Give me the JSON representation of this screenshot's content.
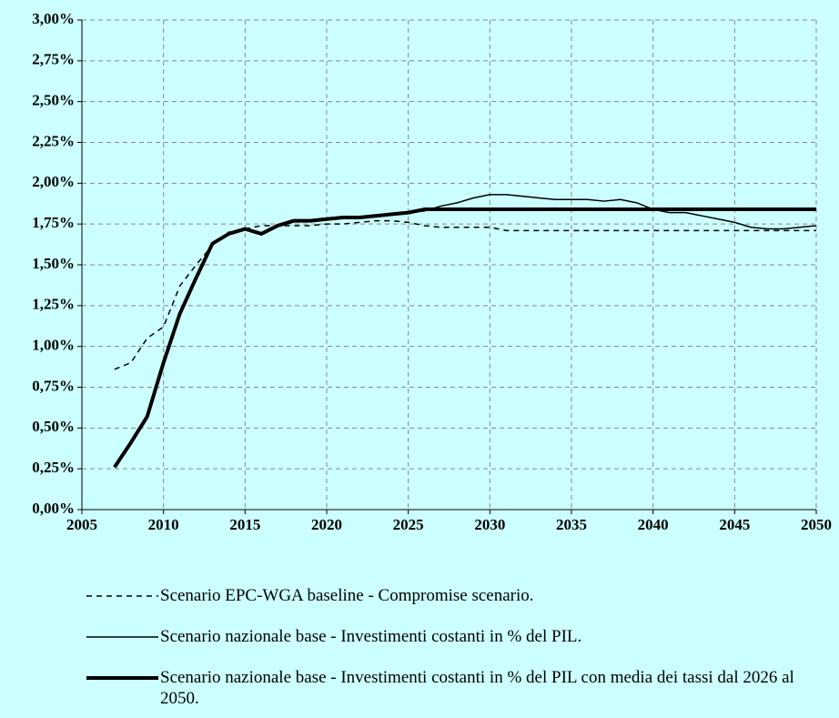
{
  "chart_data": {
    "type": "line",
    "x": [
      2007,
      2008,
      2009,
      2010,
      2011,
      2012,
      2013,
      2014,
      2015,
      2016,
      2017,
      2018,
      2019,
      2020,
      2021,
      2022,
      2023,
      2024,
      2025,
      2026,
      2027,
      2028,
      2029,
      2030,
      2031,
      2032,
      2033,
      2034,
      2035,
      2036,
      2037,
      2038,
      2039,
      2040,
      2041,
      2042,
      2043,
      2044,
      2045,
      2046,
      2047,
      2048,
      2049,
      2050
    ],
    "series": [
      {
        "name": "Scenario EPC-WGA baseline - Compromise scenario.",
        "color": "#000000",
        "line_style": "dashed",
        "line_width": 1.5,
        "values": [
          0.86,
          0.9,
          1.05,
          1.12,
          1.37,
          1.5,
          1.62,
          1.7,
          1.72,
          1.74,
          1.74,
          1.74,
          1.74,
          1.75,
          1.75,
          1.76,
          1.77,
          1.77,
          1.76,
          1.74,
          1.73,
          1.73,
          1.73,
          1.73,
          1.71,
          1.71,
          1.71,
          1.71,
          1.71,
          1.71,
          1.71,
          1.71,
          1.71,
          1.71,
          1.71,
          1.71,
          1.71,
          1.71,
          1.71,
          1.71,
          1.71,
          1.71,
          1.71,
          1.71
        ]
      },
      {
        "name": "Scenario nazionale base - Investimenti costanti in % del PIL.",
        "color": "#000000",
        "line_style": "solid",
        "line_width": 1.5,
        "values": [
          0.26,
          0.41,
          0.57,
          0.9,
          1.2,
          1.42,
          1.63,
          1.69,
          1.72,
          1.69,
          1.74,
          1.77,
          1.77,
          1.78,
          1.79,
          1.79,
          1.8,
          1.81,
          1.82,
          1.83,
          1.86,
          1.88,
          1.91,
          1.93,
          1.93,
          1.92,
          1.91,
          1.9,
          1.9,
          1.9,
          1.89,
          1.9,
          1.88,
          1.84,
          1.82,
          1.82,
          1.8,
          1.78,
          1.76,
          1.73,
          1.72,
          1.72,
          1.73,
          1.74
        ]
      },
      {
        "name": "Scenario nazionale base -  Investimenti costanti in % del PIL con media dei tassi dal 2026 al 2050.",
        "color": "#000000",
        "line_style": "solid",
        "line_width": 4,
        "values": [
          0.26,
          0.41,
          0.57,
          0.9,
          1.2,
          1.42,
          1.63,
          1.69,
          1.72,
          1.69,
          1.74,
          1.77,
          1.77,
          1.78,
          1.79,
          1.79,
          1.8,
          1.81,
          1.82,
          1.84,
          1.84,
          1.84,
          1.84,
          1.84,
          1.84,
          1.84,
          1.84,
          1.84,
          1.84,
          1.84,
          1.84,
          1.84,
          1.84,
          1.84,
          1.84,
          1.84,
          1.84,
          1.84,
          1.84,
          1.84,
          1.84,
          1.84,
          1.84,
          1.84
        ]
      }
    ],
    "xlim": [
      2005,
      2050
    ],
    "xticks": [
      2005,
      2010,
      2015,
      2020,
      2025,
      2030,
      2035,
      2040,
      2045,
      2050
    ],
    "ylim": [
      0,
      3
    ],
    "yticks": [
      {
        "value": 0,
        "label": "0,00%"
      },
      {
        "value": 0.25,
        "label": "0,25%"
      },
      {
        "value": 0.5,
        "label": "0,50%"
      },
      {
        "value": 0.75,
        "label": "0,75%"
      },
      {
        "value": 1,
        "label": "1,00%"
      },
      {
        "value": 1.25,
        "label": "1,25%"
      },
      {
        "value": 1.5,
        "label": "1,50%"
      },
      {
        "value": 1.75,
        "label": "1,75%"
      },
      {
        "value": 2,
        "label": "2,00%"
      },
      {
        "value": 2.25,
        "label": "2,25%"
      },
      {
        "value": 2.5,
        "label": "2,50%"
      },
      {
        "value": 2.75,
        "label": "2,75%"
      },
      {
        "value": 3,
        "label": "3,00%"
      }
    ],
    "grid": true
  }
}
